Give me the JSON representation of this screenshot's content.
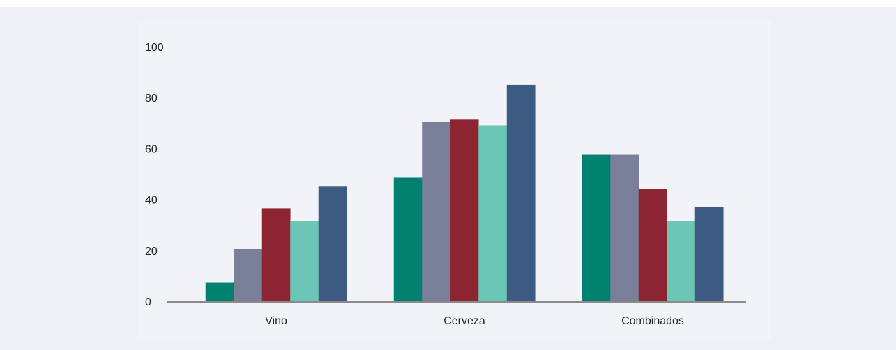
{
  "chart_data": {
    "type": "bar",
    "title": "",
    "xlabel": "",
    "ylabel": "",
    "ylim": [
      0,
      100
    ],
    "yticks": [
      0,
      20,
      40,
      60,
      80,
      100
    ],
    "categories": [
      "Vino",
      "Cerveza",
      "Combinados"
    ],
    "grid": false,
    "legend": "none",
    "series": [
      {
        "color": "#00806e",
        "values": [
          7.5,
          48.5,
          57.5
        ]
      },
      {
        "color": "#7a7f9a",
        "values": [
          20.5,
          70.5,
          57.5
        ]
      },
      {
        "color": "#8c2431",
        "values": [
          36.5,
          71.5,
          44
        ]
      },
      {
        "color": "#6cc6b8",
        "values": [
          31.5,
          69,
          31.5
        ]
      },
      {
        "color": "#3c5a82",
        "values": [
          45,
          85,
          37
        ]
      }
    ]
  },
  "colors": {
    "page_background": "#eef0f6",
    "panel_background": "#f2f3f8",
    "axis": "#8a8a8a"
  }
}
